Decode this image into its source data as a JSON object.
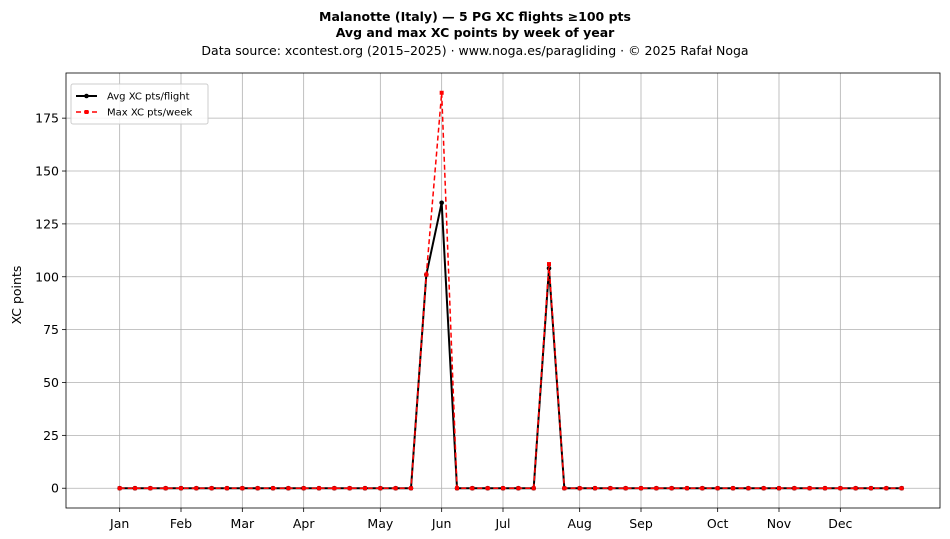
{
  "chart_data": {
    "type": "line",
    "title": "Malanotte (Italy)  —  5 PG XC flights ≥100 pts",
    "subtitle": "Avg and max XC points by week of year",
    "source": "Data source: xcontest.org (2015–2025)  ·  www.noga.es/paragliding  ·  © 2025 Rafał Noga",
    "xlabel": "",
    "ylabel": "XC points",
    "xlim": [
      -2.5,
      54.5
    ],
    "ylim": [
      -9.35,
      196.35
    ],
    "yticks": [
      0,
      25,
      50,
      75,
      100,
      125,
      150,
      175
    ],
    "x_ticks": [
      {
        "label": "Jan",
        "week": 1
      },
      {
        "label": "Feb",
        "week": 5
      },
      {
        "label": "Mar",
        "week": 9
      },
      {
        "label": "Apr",
        "week": 13
      },
      {
        "label": "May",
        "week": 18
      },
      {
        "label": "Jun",
        "week": 22
      },
      {
        "label": "Jul",
        "week": 26
      },
      {
        "label": "Aug",
        "week": 31
      },
      {
        "label": "Sep",
        "week": 35
      },
      {
        "label": "Oct",
        "week": 40
      },
      {
        "label": "Nov",
        "week": 44
      },
      {
        "label": "Dec",
        "week": 48
      }
    ],
    "grid": true,
    "legend_position": "top-left",
    "x": [
      1,
      2,
      3,
      4,
      5,
      6,
      7,
      8,
      9,
      10,
      11,
      12,
      13,
      14,
      15,
      16,
      17,
      18,
      19,
      20,
      21,
      22,
      23,
      24,
      25,
      26,
      27,
      28,
      29,
      30,
      31,
      32,
      33,
      34,
      35,
      36,
      37,
      38,
      39,
      40,
      41,
      42,
      43,
      44,
      45,
      46,
      47,
      48,
      49,
      50,
      51,
      52
    ],
    "series": [
      {
        "name": "Avg XC pts/flight",
        "color": "#000000",
        "style": "solid",
        "marker": "circle",
        "values": [
          0,
          0,
          0,
          0,
          0,
          0,
          0,
          0,
          0,
          0,
          0,
          0,
          0,
          0,
          0,
          0,
          0,
          0,
          0,
          0,
          101,
          135,
          0,
          0,
          0,
          0,
          0,
          0,
          104,
          0,
          0,
          0,
          0,
          0,
          0,
          0,
          0,
          0,
          0,
          0,
          0,
          0,
          0,
          0,
          0,
          0,
          0,
          0,
          0,
          0,
          0,
          0
        ]
      },
      {
        "name": "Max XC pts/week",
        "color": "#ff0000",
        "style": "dashed",
        "marker": "square",
        "values": [
          0,
          0,
          0,
          0,
          0,
          0,
          0,
          0,
          0,
          0,
          0,
          0,
          0,
          0,
          0,
          0,
          0,
          0,
          0,
          0,
          101,
          187,
          0,
          0,
          0,
          0,
          0,
          0,
          106,
          0,
          0,
          0,
          0,
          0,
          0,
          0,
          0,
          0,
          0,
          0,
          0,
          0,
          0,
          0,
          0,
          0,
          0,
          0,
          0,
          0,
          0,
          0
        ]
      }
    ]
  }
}
